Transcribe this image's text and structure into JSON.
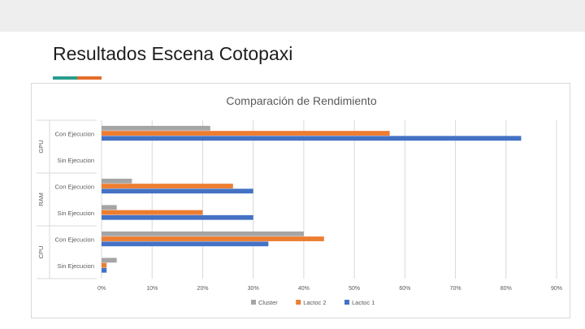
{
  "slide": {
    "title": "Resultados Escena Cotopaxi",
    "accent_colors": [
      "#2a9d8f",
      "#e36c2a"
    ]
  },
  "chart_data": {
    "type": "bar",
    "orientation": "horizontal",
    "title": "Comparación de Rendimiento",
    "groups": [
      {
        "name": "GPU",
        "categories": [
          "Con Ejecucion",
          "Sin Ejecucion"
        ]
      },
      {
        "name": "RAM",
        "categories": [
          "Con Ejecucion",
          "Sin Ejecucion"
        ]
      },
      {
        "name": "CPU",
        "categories": [
          "Con Ejecucion",
          "Sin Ejecucion"
        ]
      }
    ],
    "categories": [
      "GPU - Con Ejecucion",
      "GPU - Sin Ejecucion",
      "RAM - Con Ejecucion",
      "RAM - Sin Ejecucion",
      "CPU - Con Ejecucion",
      "CPU - Sin Ejecucion"
    ],
    "series": [
      {
        "name": "Cluster",
        "color": "#a5a5a5",
        "values": [
          21.5,
          0,
          6,
          3,
          40,
          3
        ]
      },
      {
        "name": "Lactoc 2",
        "color": "#ed7d31",
        "values": [
          57,
          0,
          26,
          20,
          44,
          1
        ]
      },
      {
        "name": "Lactoc 1",
        "color": "#4472c4",
        "values": [
          83,
          0,
          30,
          30,
          33,
          1
        ]
      }
    ],
    "xlim": [
      0,
      90
    ],
    "xticks": [
      "0%",
      "10%",
      "20%",
      "30%",
      "40%",
      "50%",
      "60%",
      "70%",
      "80%",
      "90%"
    ],
    "grid": true,
    "legend_position": "bottom"
  }
}
